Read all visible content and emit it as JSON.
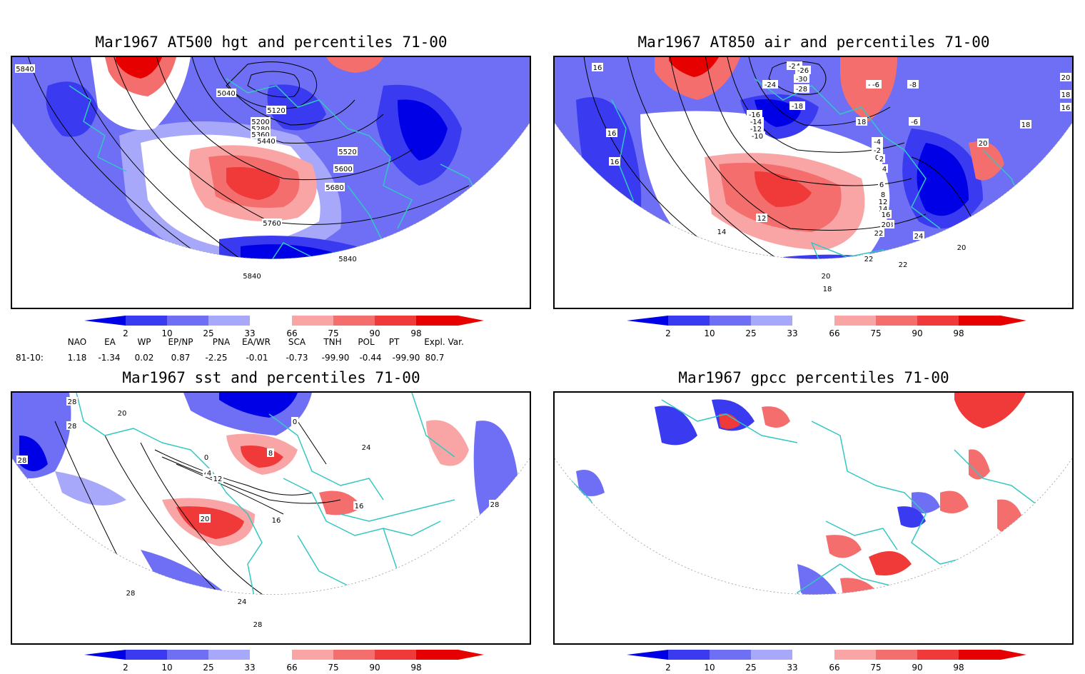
{
  "colors": {
    "coast": "#33c7c4",
    "blue_dark": "#0000e6",
    "blue_mid": "#3a3af0",
    "blue_light": "#6f6ff5",
    "blue_pale": "#a8a8fa",
    "red_pale": "#faa5a5",
    "red_light": "#f56e6e",
    "red_mid": "#f03a3a",
    "red_dark": "#e60000"
  },
  "panels": [
    {
      "title": "Mar1967 AT500 hgt and percentiles 71-00",
      "contour_labels": [
        "5840",
        "5040",
        "5120",
        "5200",
        "5280",
        "5360",
        "5440",
        "5520",
        "5600",
        "5680",
        "5760",
        "5840",
        "5840"
      ]
    },
    {
      "title": "Mar1967 AT850 air and percentiles 71-00",
      "contour_labels": [
        "16",
        "-24",
        "-26",
        "-30",
        "-24",
        "-28",
        "-18",
        "-16",
        "-14",
        "-12",
        "-10",
        "-8",
        "-6",
        "-8",
        "-6",
        "-4",
        "-2",
        "0",
        "2",
        "20",
        "18",
        "16",
        "18",
        "16",
        "16",
        "18",
        "20",
        "4",
        "6",
        "8",
        "12",
        "14",
        "16",
        "18",
        "20",
        "12",
        "14",
        "22",
        "24",
        "20",
        "22",
        "22",
        "20",
        "18"
      ]
    },
    {
      "title": "Mar1967 sst and percentiles 71-00",
      "contour_labels": [
        "28",
        "28",
        "20",
        "28",
        "0",
        "8",
        "4",
        "0",
        "4",
        "12",
        "20",
        "16",
        "24",
        "16",
        "28",
        "24",
        "28",
        "28"
      ]
    },
    {
      "title": "Mar1967 gpcc percentiles 71-00",
      "contour_labels": []
    }
  ],
  "colorbar": {
    "labels": [
      "2",
      "10",
      "25",
      "33",
      "66",
      "75",
      "90",
      "98"
    ]
  },
  "indices": {
    "headers": [
      "NAO",
      "EA",
      "WP",
      "EP/NP",
      "PNA",
      "EA/WR",
      "SCA",
      "TNH",
      "POL",
      "PT",
      "Expl. Var."
    ],
    "row_label": "81-10:",
    "values": [
      "1.18",
      "-1.34",
      "0.02",
      "0.87",
      "-2.25",
      "-0.01",
      "-0.73",
      "-99.90",
      "-0.44",
      "-99.90",
      "80.7"
    ]
  }
}
